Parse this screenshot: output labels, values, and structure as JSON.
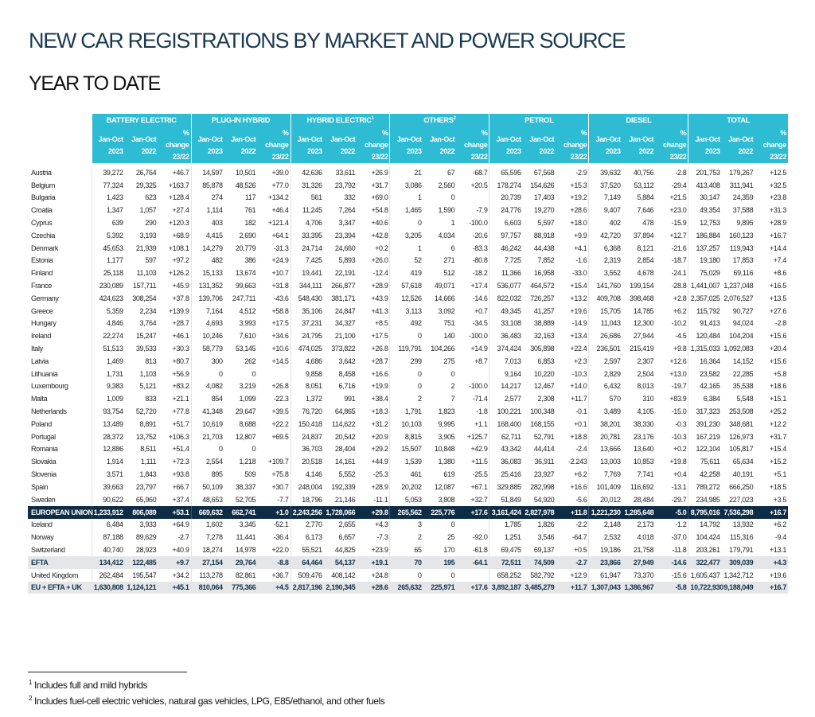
{
  "title": "NEW CAR REGISTRATIONS BY MARKET AND POWER SOURCE",
  "subtitle": "YEAR TO DATE",
  "colors": {
    "header_bg": "#2dbcd4",
    "eu_row_bg": "#0e2c45",
    "summary_row_bg": "#e5e6e8",
    "title": "#1b3a4f"
  },
  "groups": [
    {
      "label": "BATTERY ELECTRIC",
      "sup": ""
    },
    {
      "label": "PLUG-IN HYBRID",
      "sup": ""
    },
    {
      "label": "HYBRID ELECTRIC",
      "sup": "1"
    },
    {
      "label": "OTHERS",
      "sup": "2"
    },
    {
      "label": "PETROL",
      "sup": ""
    },
    {
      "label": "DIESEL",
      "sup": ""
    },
    {
      "label": "TOTAL",
      "sup": ""
    }
  ],
  "subheaders": [
    {
      "line1": "Jan-Oct",
      "line2": "2023"
    },
    {
      "line1": "Jan-Oct",
      "line2": "2022"
    },
    {
      "line1": "% change",
      "line2": "23/22"
    }
  ],
  "rows": [
    {
      "name": "Austria",
      "type": "country",
      "values": [
        "39,272",
        "26,764",
        "+46.7",
        "14,597",
        "10,501",
        "+39.0",
        "42,636",
        "33,611",
        "+26.9",
        "21",
        "67",
        "-68.7",
        "65,595",
        "67,568",
        "-2.9",
        "39,632",
        "40,756",
        "-2.8",
        "201,753",
        "179,267",
        "+12.5"
      ]
    },
    {
      "name": "Belgium",
      "type": "country",
      "values": [
        "77,324",
        "29,325",
        "+163.7",
        "85,878",
        "48,526",
        "+77.0",
        "31,326",
        "23,792",
        "+31.7",
        "3,086",
        "2,560",
        "+20.5",
        "178,274",
        "154,626",
        "+15.3",
        "37,520",
        "53,112",
        "-29.4",
        "413,408",
        "311,941",
        "+32.5"
      ]
    },
    {
      "name": "Bulgaria",
      "type": "country",
      "values": [
        "1,423",
        "623",
        "+128.4",
        "274",
        "117",
        "+134.2",
        "561",
        "332",
        "+69.0",
        "1",
        "0",
        "",
        "20,739",
        "17,403",
        "+19.2",
        "7,149",
        "5,884",
        "+21.5",
        "30,147",
        "24,359",
        "+23.8"
      ]
    },
    {
      "name": "Croatia",
      "type": "country",
      "values": [
        "1,347",
        "1,057",
        "+27.4",
        "1,114",
        "761",
        "+46.4",
        "11,245",
        "7,264",
        "+54.8",
        "1,465",
        "1,590",
        "-7.9",
        "24,776",
        "19,270",
        "+28.6",
        "9,407",
        "7,646",
        "+23.0",
        "49,354",
        "37,588",
        "+31.3"
      ]
    },
    {
      "name": "Cyprus",
      "type": "country",
      "values": [
        "639",
        "290",
        "+120.3",
        "403",
        "182",
        "+121.4",
        "4,706",
        "3,347",
        "+40.6",
        "0",
        "1",
        "-100.0",
        "6,603",
        "5,597",
        "+18.0",
        "402",
        "478",
        "-15.9",
        "12,753",
        "9,895",
        "+28.9"
      ]
    },
    {
      "name": "Czechia",
      "type": "country",
      "values": [
        "5,392",
        "3,193",
        "+68.9",
        "4,415",
        "2,690",
        "+64.1",
        "33,395",
        "23,394",
        "+42.8",
        "3,205",
        "4,034",
        "-20.6",
        "97,757",
        "88,918",
        "+9.9",
        "42,720",
        "37,894",
        "+12.7",
        "186,884",
        "160,123",
        "+16.7"
      ]
    },
    {
      "name": "Denmark",
      "type": "country",
      "values": [
        "45,653",
        "21,939",
        "+108.1",
        "14,279",
        "20,779",
        "-31.3",
        "24,714",
        "24,660",
        "+0.2",
        "1",
        "6",
        "-83.3",
        "46,242",
        "44,438",
        "+4.1",
        "6,368",
        "8,121",
        "-21.6",
        "137,257",
        "119,943",
        "+14.4"
      ]
    },
    {
      "name": "Estonia",
      "type": "country",
      "values": [
        "1,177",
        "597",
        "+97.2",
        "482",
        "386",
        "+24.9",
        "7,425",
        "5,893",
        "+26.0",
        "52",
        "271",
        "-80.8",
        "7,725",
        "7,852",
        "-1.6",
        "2,319",
        "2,854",
        "-18.7",
        "19,180",
        "17,853",
        "+7.4"
      ]
    },
    {
      "name": "Finland",
      "type": "country",
      "values": [
        "25,118",
        "11,103",
        "+126.2",
        "15,133",
        "13,674",
        "+10.7",
        "19,441",
        "22,191",
        "-12.4",
        "419",
        "512",
        "-18.2",
        "11,366",
        "16,958",
        "-33.0",
        "3,552",
        "4,678",
        "-24.1",
        "75,029",
        "69,116",
        "+8.6"
      ]
    },
    {
      "name": "France",
      "type": "country",
      "values": [
        "230,089",
        "157,711",
        "+45.9",
        "131,352",
        "99,663",
        "+31.8",
        "344,111",
        "266,877",
        "+28.9",
        "57,618",
        "49,071",
        "+17.4",
        "536,077",
        "464,572",
        "+15.4",
        "141,760",
        "199,154",
        "-28.8",
        "1,441,007",
        "1,237,048",
        "+16.5"
      ]
    },
    {
      "name": "Germany",
      "type": "country",
      "values": [
        "424,623",
        "308,254",
        "+37.8",
        "139,706",
        "247,711",
        "-43.6",
        "548,430",
        "381,171",
        "+43.9",
        "12,526",
        "14,666",
        "-14.6",
        "822,032",
        "726,257",
        "+13.2",
        "409,708",
        "398,468",
        "+2.8",
        "2,357,025",
        "2,076,527",
        "+13.5"
      ]
    },
    {
      "name": "Greece",
      "type": "country",
      "values": [
        "5,359",
        "2,234",
        "+139.9",
        "7,164",
        "4,512",
        "+58.8",
        "35,106",
        "24,847",
        "+41.3",
        "3,113",
        "3,092",
        "+0.7",
        "49,345",
        "41,257",
        "+19.6",
        "15,705",
        "14,785",
        "+6.2",
        "115,792",
        "90,727",
        "+27.6"
      ]
    },
    {
      "name": "Hungary",
      "type": "country",
      "values": [
        "4,846",
        "3,764",
        "+28.7",
        "4,693",
        "3,993",
        "+17.5",
        "37,231",
        "34,327",
        "+8.5",
        "492",
        "751",
        "-34.5",
        "33,108",
        "38,889",
        "-14.9",
        "11,043",
        "12,300",
        "-10.2",
        "91,413",
        "94,024",
        "-2.8"
      ]
    },
    {
      "name": "Ireland",
      "type": "country",
      "values": [
        "22,274",
        "15,247",
        "+46.1",
        "10,246",
        "7,610",
        "+34.6",
        "24,795",
        "21,100",
        "+17.5",
        "0",
        "140",
        "-100.0",
        "36,483",
        "32,163",
        "+13.4",
        "26,686",
        "27,944",
        "-4.5",
        "120,484",
        "104,204",
        "+15.6"
      ]
    },
    {
      "name": "Italy",
      "type": "country",
      "values": [
        "51,513",
        "39,533",
        "+30.3",
        "58,779",
        "53,145",
        "+10.6",
        "474,025",
        "373,822",
        "+26.8",
        "119,791",
        "104,266",
        "+14.9",
        "374,424",
        "305,898",
        "+22.4",
        "236,501",
        "215,419",
        "+9.8",
        "1,315,033",
        "1,092,083",
        "+20.4"
      ]
    },
    {
      "name": "Latvia",
      "type": "country",
      "values": [
        "1,469",
        "813",
        "+80.7",
        "300",
        "262",
        "+14.5",
        "4,686",
        "3,642",
        "+28.7",
        "299",
        "275",
        "+8.7",
        "7,013",
        "6,853",
        "+2.3",
        "2,597",
        "2,307",
        "+12.6",
        "16,364",
        "14,152",
        "+15.6"
      ]
    },
    {
      "name": "Lithuania",
      "type": "country",
      "values": [
        "1,731",
        "1,103",
        "+56.9",
        "0",
        "0",
        "",
        "9,858",
        "8,458",
        "+16.6",
        "0",
        "0",
        "",
        "9,164",
        "10,220",
        "-10.3",
        "2,829",
        "2,504",
        "+13.0",
        "23,582",
        "22,285",
        "+5.8"
      ]
    },
    {
      "name": "Luxembourg",
      "type": "country",
      "values": [
        "9,383",
        "5,121",
        "+83.2",
        "4,082",
        "3,219",
        "+26.8",
        "8,051",
        "6,716",
        "+19.9",
        "0",
        "2",
        "-100.0",
        "14,217",
        "12,467",
        "+14.0",
        "6,432",
        "8,013",
        "-19.7",
        "42,165",
        "35,538",
        "+18.6"
      ]
    },
    {
      "name": "Malta",
      "type": "country",
      "values": [
        "1,009",
        "833",
        "+21.1",
        "854",
        "1,099",
        "-22.3",
        "1,372",
        "991",
        "+38.4",
        "2",
        "7",
        "-71.4",
        "2,577",
        "2,308",
        "+11.7",
        "570",
        "310",
        "+83.9",
        "6,384",
        "5,548",
        "+15.1"
      ]
    },
    {
      "name": "Netherlands",
      "type": "country",
      "values": [
        "93,754",
        "52,720",
        "+77.8",
        "41,348",
        "29,647",
        "+39.5",
        "76,720",
        "64,865",
        "+18.3",
        "1,791",
        "1,823",
        "-1.8",
        "100,221",
        "100,348",
        "-0.1",
        "3,489",
        "4,105",
        "-15.0",
        "317,323",
        "253,508",
        "+25.2"
      ]
    },
    {
      "name": "Poland",
      "type": "country",
      "values": [
        "13,489",
        "8,891",
        "+51.7",
        "10,619",
        "8,688",
        "+22.2",
        "150,418",
        "114,622",
        "+31.2",
        "10,103",
        "9,995",
        "+1.1",
        "168,400",
        "168,155",
        "+0.1",
        "38,201",
        "38,330",
        "-0.3",
        "391,230",
        "348,681",
        "+12.2"
      ]
    },
    {
      "name": "Portugal",
      "type": "country",
      "values": [
        "28,372",
        "13,752",
        "+106.3",
        "21,703",
        "12,807",
        "+69.5",
        "24,837",
        "20,542",
        "+20.9",
        "8,815",
        "3,905",
        "+125.7",
        "62,711",
        "52,791",
        "+18.8",
        "20,781",
        "23,176",
        "-10.3",
        "167,219",
        "126,973",
        "+31.7"
      ]
    },
    {
      "name": "Romania",
      "type": "country",
      "values": [
        "12,886",
        "8,511",
        "+51.4",
        "0",
        "0",
        "",
        "36,703",
        "28,404",
        "+29.2",
        "15,507",
        "10,848",
        "+42.9",
        "43,342",
        "44,414",
        "-2.4",
        "13,666",
        "13,640",
        "+0.2",
        "122,104",
        "105,817",
        "+15.4"
      ]
    },
    {
      "name": "Slovakia",
      "type": "country",
      "values": [
        "1,914",
        "1,111",
        "+72.3",
        "2,554",
        "1,218",
        "+109.7",
        "20,518",
        "14,161",
        "+44.9",
        "1,539",
        "1,380",
        "+11.5",
        "36,083",
        "36,911",
        "-2.243",
        "13,003",
        "10,853",
        "+19.8",
        "75,611",
        "65,634",
        "+15.2"
      ]
    },
    {
      "name": "Slovenia",
      "type": "country",
      "values": [
        "3,571",
        "1,843",
        "+93.8",
        "895",
        "509",
        "+75.8",
        "4,146",
        "5,552",
        "-25.3",
        "461",
        "619",
        "-25.5",
        "25,416",
        "23,927",
        "+6.2",
        "7,769",
        "7,741",
        "+0.4",
        "42,258",
        "40,191",
        "+5.1"
      ]
    },
    {
      "name": "Spain",
      "type": "country",
      "values": [
        "39,663",
        "23,797",
        "+66.7",
        "50,109",
        "38,337",
        "+30.7",
        "248,004",
        "192,339",
        "+28.9",
        "20,202",
        "12,087",
        "+67.1",
        "329,885",
        "282,998",
        "+16.6",
        "101,409",
        "116,692",
        "-13.1",
        "789,272",
        "666,250",
        "+18.5"
      ]
    },
    {
      "name": "Sweden",
      "type": "country",
      "values": [
        "90,622",
        "65,960",
        "+37.4",
        "48,653",
        "52,705",
        "-7.7",
        "18,796",
        "21,146",
        "-11.1",
        "5,053",
        "3,808",
        "+32.7",
        "51,849",
        "54,920",
        "-5.6",
        "20,012",
        "28,484",
        "-29.7",
        "234,985",
        "227,023",
        "+3.5"
      ]
    },
    {
      "name": "EUROPEAN UNION",
      "type": "eu",
      "values": [
        "1,233,912",
        "806,089",
        "+53.1",
        "669,632",
        "662,741",
        "+1.0",
        "2,243,256",
        "1,728,066",
        "+29.8",
        "265,562",
        "225,776",
        "+17.6",
        "3,161,424",
        "2,827,978",
        "+11.8",
        "1,221,230",
        "1,285,648",
        "-5.0",
        "8,795,016",
        "7,536,298",
        "+16.7"
      ]
    },
    {
      "name": "Iceland",
      "type": "country",
      "values": [
        "6,484",
        "3,933",
        "+64.9",
        "1,602",
        "3,345",
        "-52.1",
        "2,770",
        "2,655",
        "+4.3",
        "3",
        "0",
        "",
        "1,785",
        "1,826",
        "-2.2",
        "2,148",
        "2,173",
        "-1.2",
        "14,792",
        "13,932",
        "+6.2"
      ]
    },
    {
      "name": "Norway",
      "type": "country",
      "values": [
        "87,188",
        "89,629",
        "-2.7",
        "7,278",
        "11,441",
        "-36.4",
        "6,173",
        "6,657",
        "-7.3",
        "2",
        "25",
        "-92.0",
        "1,251",
        "3,546",
        "-64.7",
        "2,532",
        "4,018",
        "-37.0",
        "104,424",
        "115,316",
        "-9.4"
      ]
    },
    {
      "name": "Switzerland",
      "type": "country",
      "values": [
        "40,740",
        "28,923",
        "+40.9",
        "18,274",
        "14,978",
        "+22.0",
        "55,521",
        "44,825",
        "+23.9",
        "65",
        "170",
        "-61.8",
        "69,475",
        "69,137",
        "+0.5",
        "19,186",
        "21,758",
        "-11.8",
        "203,261",
        "179,791",
        "+13.1"
      ]
    },
    {
      "name": "EFTA",
      "type": "sum",
      "values": [
        "134,412",
        "122,485",
        "+9.7",
        "27,154",
        "29,764",
        "-8.8",
        "64,464",
        "54,137",
        "+19.1",
        "70",
        "195",
        "-64.1",
        "72,511",
        "74,509",
        "-2.7",
        "23,866",
        "27,949",
        "-14.6",
        "322,477",
        "309,039",
        "+4.3"
      ]
    },
    {
      "name": "United Kingdom",
      "type": "country",
      "values": [
        "262,484",
        "195,547",
        "+34.2",
        "113,278",
        "82,861",
        "+36.7",
        "509,476",
        "408,142",
        "+24.8",
        "0",
        "0",
        "",
        "658,252",
        "582,792",
        "+12.9",
        "61,947",
        "73,370",
        "-15.6",
        "1,605,437",
        "1,342,712",
        "+19.6"
      ]
    },
    {
      "name": "EU + EFTA + UK",
      "type": "sum",
      "values": [
        "1,630,808",
        "1,124,121",
        "+45.1",
        "810,064",
        "775,366",
        "+4.5",
        "2,817,196",
        "2,190,345",
        "+28.6",
        "265,632",
        "225,971",
        "+17.6",
        "3,892,187",
        "3,485,279",
        "+11.7",
        "1,307,043",
        "1,386,967",
        "-5.8",
        "10,722,930",
        "9,188,049",
        "+16.7"
      ]
    }
  ],
  "footnotes": [
    {
      "mark": "1",
      "text": "Includes full and mild hybrids"
    },
    {
      "mark": "2",
      "text": "Includes fuel-cell electric vehicles, natural gas vehicles, LPG, E85/ethanol, and other fuels"
    }
  ]
}
